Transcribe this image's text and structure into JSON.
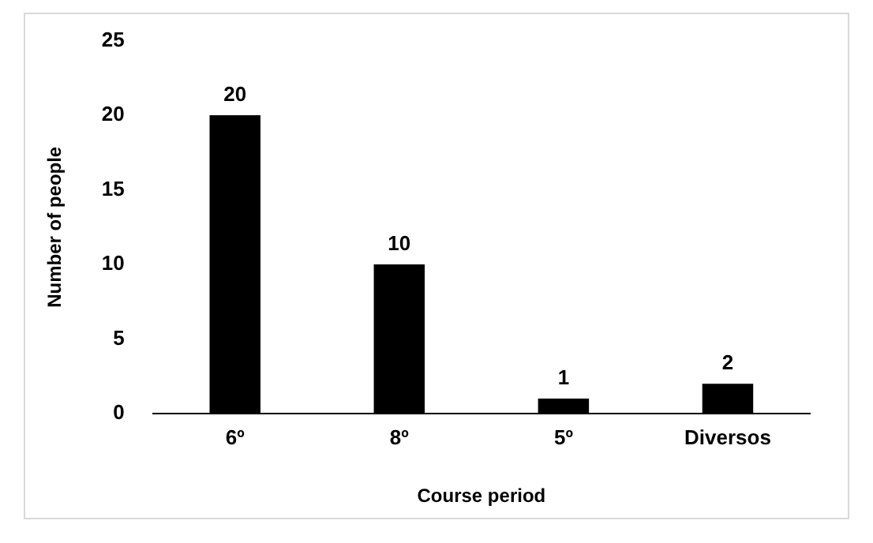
{
  "chart_data": {
    "type": "bar",
    "xlabel": "Course period",
    "ylabel": "Number of people",
    "categories": [
      "6º",
      "8º",
      "5º",
      "Diversos"
    ],
    "values": [
      20,
      10,
      1,
      2
    ],
    "color": "#000000",
    "ylim": [
      0,
      25
    ],
    "yticks": [
      0,
      5,
      10,
      15,
      20,
      25
    ],
    "grid": false,
    "legend": false,
    "data_labels": true
  }
}
